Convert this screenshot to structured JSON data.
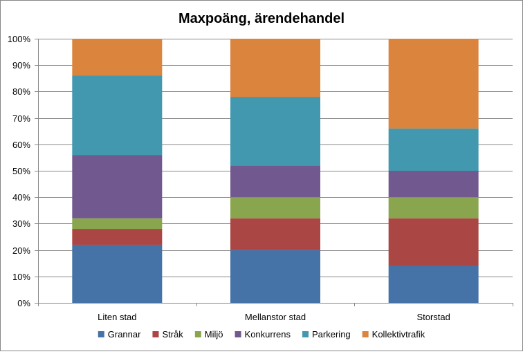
{
  "chart_data": {
    "type": "bar",
    "stacked": true,
    "percent": true,
    "title": "Maxpoäng, ärendehandel",
    "xlabel": "",
    "ylabel": "",
    "ylim": [
      0,
      100
    ],
    "yticks": [
      "0%",
      "10%",
      "20%",
      "30%",
      "40%",
      "50%",
      "60%",
      "70%",
      "80%",
      "90%",
      "100%"
    ],
    "grid": true,
    "legend_position": "bottom",
    "categories": [
      "Liten stad",
      "Mellanstor stad",
      "Storstad"
    ],
    "series": [
      {
        "name": "Grannar",
        "color": "#4572A7",
        "values": [
          22,
          20,
          14
        ]
      },
      {
        "name": "Stråk",
        "color": "#AA4643",
        "values": [
          6,
          12,
          18
        ]
      },
      {
        "name": "Miljö",
        "color": "#89A54E",
        "values": [
          4,
          8,
          8
        ]
      },
      {
        "name": "Konkurrens",
        "color": "#71588F",
        "values": [
          24,
          12,
          10
        ]
      },
      {
        "name": "Parkering",
        "color": "#4198AF",
        "values": [
          30,
          26,
          16
        ]
      },
      {
        "name": "Kollektivtrafik",
        "color": "#DB843D",
        "values": [
          14,
          22,
          34
        ]
      }
    ]
  }
}
